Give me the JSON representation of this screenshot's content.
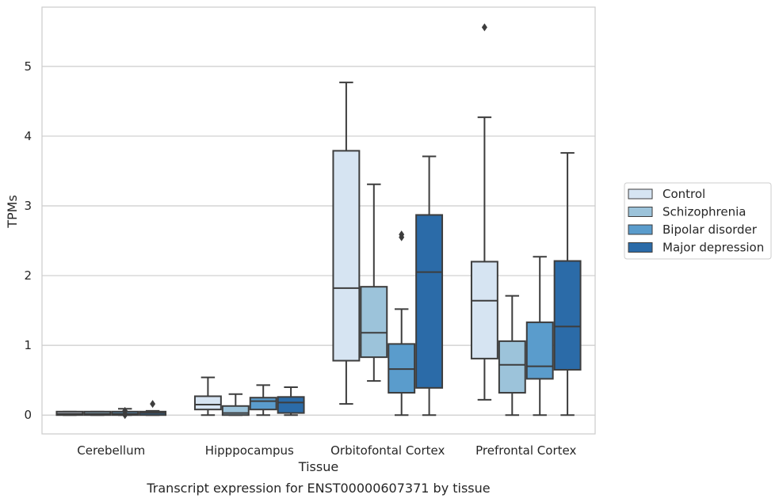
{
  "chart_data": {
    "type": "box",
    "caption": "Transcript expression for ENST00000607371 by tissue",
    "xlabel": "Tissue",
    "ylabel": "TPMs",
    "ylim": [
      -0.27,
      5.85
    ],
    "yticks": [
      0,
      1,
      2,
      3,
      4,
      5
    ],
    "grid": "horizontal",
    "legend_position": "right",
    "categories": [
      "Cerebellum",
      "Hipppocampus",
      "Orbitofontal Cortex",
      "Prefrontal Cortex"
    ],
    "series": [
      {
        "name": "Control",
        "color": "#d6e4f2",
        "boxes": [
          {
            "whisker_low": 0.0,
            "q1": 0.0,
            "median": 0.02,
            "q3": 0.05,
            "whisker_high": 0.05,
            "outliers": []
          },
          {
            "whisker_low": 0.0,
            "q1": 0.08,
            "median": 0.15,
            "q3": 0.27,
            "whisker_high": 0.54,
            "outliers": []
          },
          {
            "whisker_low": 0.16,
            "q1": 0.78,
            "median": 1.82,
            "q3": 3.79,
            "whisker_high": 4.77,
            "outliers": []
          },
          {
            "whisker_low": 0.22,
            "q1": 0.81,
            "median": 1.64,
            "q3": 2.2,
            "whisker_high": 4.27,
            "outliers": [
              5.56
            ]
          }
        ]
      },
      {
        "name": "Schizophrenia",
        "color": "#9cc3da",
        "boxes": [
          {
            "whisker_low": 0.0,
            "q1": 0.0,
            "median": 0.02,
            "q3": 0.05,
            "whisker_high": 0.05,
            "outliers": []
          },
          {
            "whisker_low": 0.0,
            "q1": 0.0,
            "median": 0.03,
            "q3": 0.13,
            "whisker_high": 0.3,
            "outliers": []
          },
          {
            "whisker_low": 0.49,
            "q1": 0.83,
            "median": 1.18,
            "q3": 1.84,
            "whisker_high": 3.31,
            "outliers": []
          },
          {
            "whisker_low": 0.0,
            "q1": 0.32,
            "median": 0.72,
            "q3": 1.06,
            "whisker_high": 1.71,
            "outliers": []
          }
        ]
      },
      {
        "name": "Bipolar disorder",
        "color": "#5a9ccc",
        "boxes": [
          {
            "whisker_low": 0.0,
            "q1": 0.0,
            "median": 0.02,
            "q3": 0.05,
            "whisker_high": 0.09,
            "outliers": [
              0.0,
              0.02,
              0.06
            ]
          },
          {
            "whisker_low": 0.0,
            "q1": 0.08,
            "median": 0.2,
            "q3": 0.25,
            "whisker_high": 0.43,
            "outliers": []
          },
          {
            "whisker_low": 0.0,
            "q1": 0.32,
            "median": 0.66,
            "q3": 1.02,
            "whisker_high": 1.52,
            "outliers": [
              2.55,
              2.59
            ]
          },
          {
            "whisker_low": 0.0,
            "q1": 0.52,
            "median": 0.7,
            "q3": 1.33,
            "whisker_high": 2.27,
            "outliers": []
          }
        ]
      },
      {
        "name": "Major depression",
        "color": "#2b6ba8",
        "boxes": [
          {
            "whisker_low": 0.0,
            "q1": 0.0,
            "median": 0.03,
            "q3": 0.05,
            "whisker_high": 0.06,
            "outliers": [
              0.16
            ]
          },
          {
            "whisker_low": 0.0,
            "q1": 0.03,
            "median": 0.18,
            "q3": 0.26,
            "whisker_high": 0.4,
            "outliers": []
          },
          {
            "whisker_low": 0.0,
            "q1": 0.39,
            "median": 2.05,
            "q3": 2.87,
            "whisker_high": 3.71,
            "outliers": []
          },
          {
            "whisker_low": 0.0,
            "q1": 0.65,
            "median": 1.27,
            "q3": 2.21,
            "whisker_high": 3.76,
            "outliers": []
          }
        ]
      }
    ]
  }
}
